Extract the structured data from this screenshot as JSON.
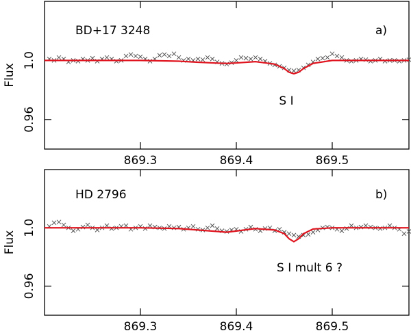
{
  "chart_data": [
    {
      "type": "line",
      "y_label": "Flux",
      "annotations": [
        "BD+17 3248",
        "a)",
        "S I"
      ],
      "xlim": [
        869.2,
        869.58
      ],
      "ylim": [
        0.94,
        1.04
      ],
      "xticks": [
        869.3,
        869.4,
        869.5
      ],
      "yticks": [
        0.96,
        {
          "value": 1.0,
          "label": "1.0"
        }
      ],
      "series": [
        {
          "marker": "x",
          "color": "#555555",
          "x": [
            869.205,
            869.21,
            869.215,
            869.22,
            869.225,
            869.23,
            869.235,
            869.24,
            869.245,
            869.25,
            869.255,
            869.26,
            869.265,
            869.27,
            869.275,
            869.28,
            869.285,
            869.29,
            869.295,
            869.3,
            869.305,
            869.31,
            869.315,
            869.32,
            869.325,
            869.33,
            869.335,
            869.34,
            869.345,
            869.35,
            869.355,
            869.36,
            869.365,
            869.37,
            869.375,
            869.38,
            869.385,
            869.39,
            869.395,
            869.4,
            869.405,
            869.41,
            869.415,
            869.42,
            869.425,
            869.43,
            869.435,
            869.44,
            869.445,
            869.45,
            869.455,
            869.46,
            869.465,
            869.47,
            869.475,
            869.48,
            869.485,
            869.49,
            869.495,
            869.5,
            869.505,
            869.51,
            869.515,
            869.52,
            869.525,
            869.53,
            869.535,
            869.54,
            869.545,
            869.55,
            869.555,
            869.56,
            869.565,
            869.57,
            869.575,
            869.58,
            869.585
          ],
          "values": [
            1.001,
            1.0,
            1.002,
            1.001,
            0.999,
            1.0,
            0.9995,
            1.001,
            1.0,
            1.0015,
            0.9995,
            1.001,
            1.002,
            1.001,
            0.9995,
            1.0,
            1.003,
            1.004,
            1.003,
            1.0025,
            1.001,
            0.9995,
            1.001,
            1.0035,
            1.004,
            1.003,
            1.0045,
            1.002,
            1.0,
            1.001,
            1.0,
            1.001,
            1.0005,
            1.002,
            1.001,
            0.999,
            0.998,
            0.9975,
            0.9985,
            1.0,
            1.002,
            1.0015,
            1.001,
            1.002,
            1.001,
            0.9995,
            0.998,
            0.997,
            0.996,
            0.995,
            0.9935,
            0.993,
            0.9935,
            0.995,
            0.997,
            0.999,
            1.001,
            1.0015,
            1.002,
            1.0045,
            1.003,
            1.002,
            1.0,
            0.9995,
            1.0,
            1.001,
            1.0005,
            0.9995,
            1.0,
            1.001,
            0.9995,
            1.0,
            1.0,
            0.9995,
            1.0,
            1.0005,
            1.0
          ]
        },
        {
          "marker": "none",
          "color": "#e0141e",
          "x": [
            869.2,
            869.25,
            869.3,
            869.34,
            869.36,
            869.38,
            869.39,
            869.4,
            869.42,
            869.44,
            869.45,
            869.455,
            869.46,
            869.465,
            869.47,
            869.48,
            869.5,
            869.55,
            869.58
          ],
          "values": [
            1.0,
            1.0,
            1.0,
            0.9995,
            0.9988,
            0.9982,
            0.998,
            0.9983,
            0.9992,
            0.9975,
            0.9945,
            0.992,
            0.991,
            0.992,
            0.9945,
            0.998,
            1.0,
            1.0,
            1.0
          ]
        }
      ]
    },
    {
      "type": "line",
      "y_label": "Flux",
      "annotations": [
        "HD 2796",
        "b)",
        "S I   mult 6 ?"
      ],
      "xlim": [
        869.2,
        869.58
      ],
      "ylim": [
        0.94,
        1.04
      ],
      "xticks": [
        869.3,
        869.4,
        869.5
      ],
      "yticks": [
        0.96,
        {
          "value": 1.0,
          "label": "1.0"
        }
      ],
      "series": [
        {
          "marker": "x",
          "color": "#555555",
          "x": [
            869.205,
            869.21,
            869.215,
            869.22,
            869.225,
            869.23,
            869.235,
            869.24,
            869.245,
            869.25,
            869.255,
            869.26,
            869.265,
            869.27,
            869.275,
            869.28,
            869.285,
            869.29,
            869.295,
            869.3,
            869.305,
            869.31,
            869.315,
            869.32,
            869.325,
            869.33,
            869.335,
            869.34,
            869.345,
            869.35,
            869.355,
            869.36,
            869.365,
            869.37,
            869.375,
            869.38,
            869.385,
            869.39,
            869.395,
            869.4,
            869.405,
            869.41,
            869.415,
            869.42,
            869.425,
            869.43,
            869.435,
            869.44,
            869.445,
            869.45,
            869.455,
            869.46,
            869.465,
            869.47,
            869.475,
            869.48,
            869.485,
            869.49,
            869.495,
            869.5,
            869.505,
            869.51,
            869.515,
            869.52,
            869.525,
            869.53,
            869.535,
            869.54,
            869.545,
            869.55,
            869.555,
            869.56,
            869.565,
            869.57,
            869.575,
            869.58,
            869.585
          ],
          "values": [
            1.001,
            1.0035,
            1.004,
            1.002,
            1.0,
            0.998,
            0.999,
            1.0005,
            1.002,
            1.0,
            0.9985,
            1.0,
            1.0015,
            0.9995,
            1.0,
            1.001,
            1.0015,
            0.999,
            1.0,
            1.001,
            0.9995,
            1.0015,
            1.0005,
            1.0,
            0.9995,
            1.001,
            1.0,
            1.0005,
            0.999,
            1.0,
            1.001,
            0.999,
            0.9985,
            1.0,
            1.0015,
            0.9995,
            0.998,
            0.9975,
            0.9985,
            0.999,
            0.9975,
            0.999,
            1.0005,
            0.999,
            0.998,
            0.9995,
            1.0,
            0.998,
            0.999,
            0.997,
            0.996,
            0.995,
            0.994,
            0.995,
            0.9955,
            0.997,
            0.9985,
            1.0,
            1.0005,
            1.0,
            0.999,
            0.998,
            0.9995,
            1.0015,
            1.0,
            1.0005,
            1.0015,
            1.0005,
            1.0,
            0.9995,
            1.0,
            1.0015,
            1.0,
            0.999,
            0.996,
            0.9975,
            0.999
          ]
        },
        {
          "marker": "none",
          "color": "#e0141e",
          "x": [
            869.2,
            869.25,
            869.3,
            869.34,
            869.36,
            869.38,
            869.39,
            869.4,
            869.42,
            869.44,
            869.45,
            869.455,
            869.46,
            869.465,
            869.47,
            869.48,
            869.5,
            869.55,
            869.58
          ],
          "values": [
            1.0,
            1.0,
            1.0,
            0.9995,
            0.9985,
            0.9975,
            0.997,
            0.9978,
            0.9995,
            0.9985,
            0.996,
            0.9925,
            0.9905,
            0.9925,
            0.996,
            0.9992,
            1.0,
            1.0,
            1.0
          ]
        }
      ]
    }
  ]
}
